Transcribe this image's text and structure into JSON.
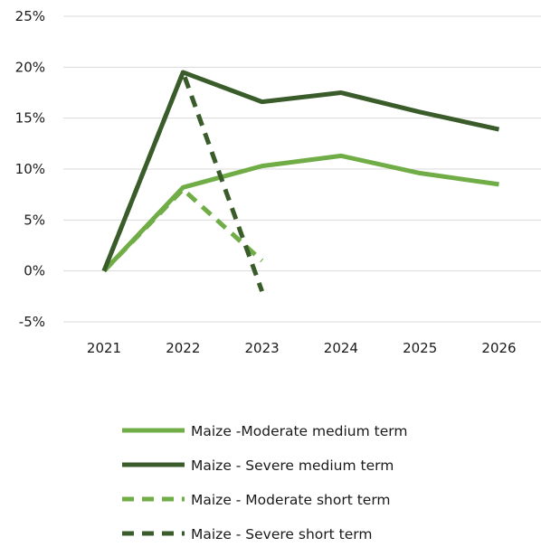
{
  "chart_data": {
    "type": "line",
    "title": "",
    "xlabel": "",
    "ylabel": "",
    "x": [
      "2021",
      "2022",
      "2023",
      "2024",
      "2025",
      "2026"
    ],
    "y_ticks": [
      "25%",
      "20%",
      "15%",
      "10%",
      "5%",
      "0%",
      "-5%"
    ],
    "ylim": [
      -5,
      25
    ],
    "grid": "horizontal",
    "legend_position": "bottom",
    "series": [
      {
        "name": "Maize -Moderate medium term",
        "color": "#70ad47",
        "style": "solid",
        "values": [
          0,
          8.2,
          10.3,
          11.3,
          9.6,
          8.5
        ]
      },
      {
        "name": "Maize - Severe medium term",
        "color": "#3a5c2a",
        "style": "solid",
        "values": [
          0,
          19.5,
          16.6,
          17.5,
          15.6,
          13.9
        ]
      },
      {
        "name": "Maize - Moderate short term",
        "color": "#70ad47",
        "style": "dashed",
        "values": [
          0,
          8.0,
          1.0,
          null,
          null,
          null
        ]
      },
      {
        "name": "Maize - Severe short term",
        "color": "#3a5c2a",
        "style": "dashed",
        "values": [
          0,
          19.5,
          -2.0,
          null,
          null,
          null
        ]
      }
    ]
  }
}
